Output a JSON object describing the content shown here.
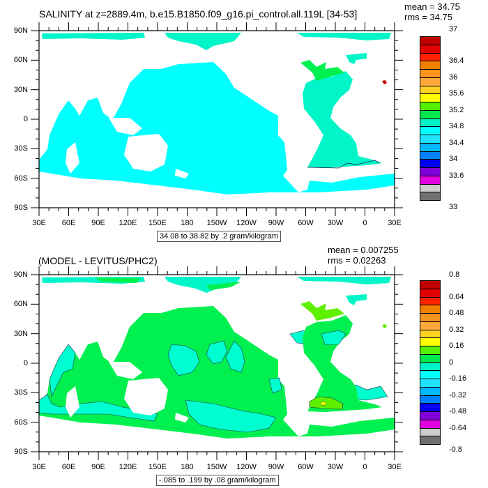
{
  "chart_data": [
    {
      "type": "heatmap",
      "title": "SALINITY at z=2889.4m, b.e15.B1850.f09_g16.pi_control.all.119L [34-53]",
      "stats": {
        "mean": "mean = 34.75",
        "rms": "rms = 34.75"
      },
      "footer": "34.08 to 38.82 by .2 gram/kilogram",
      "x_ticks": [
        "30E",
        "60E",
        "90E",
        "120E",
        "150E",
        "180",
        "150W",
        "120W",
        "90W",
        "60W",
        "30W",
        "0",
        "30E"
      ],
      "y_ticks": [
        "90N",
        "60N",
        "30N",
        "0",
        "30S",
        "60S",
        "90S"
      ],
      "colorbar_labels": [
        "37",
        "36.4",
        "36",
        "35.6",
        "35.2",
        "34.8",
        "34.4",
        "34",
        "33.6",
        "33"
      ],
      "colorbar_label_rows": [
        0,
        2,
        4,
        6,
        8,
        10,
        12,
        14,
        16,
        18,
        20
      ],
      "colorbar_label_map": [
        "37",
        "",
        "36.4",
        "",
        "36",
        "",
        "35.6",
        "",
        "35.2",
        "",
        "34.8",
        "",
        "34.4",
        "",
        "34",
        "",
        "33.6",
        "",
        "33"
      ],
      "colors": [
        "#c00000",
        "#e00000",
        "#ff2200",
        "#f08000",
        "#f89420",
        "#faa83a",
        "#ffd325",
        "#ffff00",
        "#55f000",
        "#00e850",
        "#00f2c6",
        "#00ffff",
        "#20e2ff",
        "#00b8ff",
        "#0082ff",
        "#0000f2",
        "#8000d8",
        "#e000e0",
        "#cccccc",
        "#707070"
      ]
    },
    {
      "type": "heatmap",
      "title": "(MODEL - LEVITUS/PHC2)",
      "stats": {
        "mean": "mean = 0.007255",
        "rms": "rms = 0.02263"
      },
      "footer": "-.085 to .199 by .08 gram/kilogram",
      "x_ticks": [
        "30E",
        "60E",
        "90E",
        "120E",
        "150E",
        "180",
        "150W",
        "120W",
        "90W",
        "60W",
        "30W",
        "0",
        "30E"
      ],
      "y_ticks": [
        "90N",
        "60N",
        "30N",
        "0",
        "30S",
        "60S",
        "90S"
      ],
      "colorbar_labels": [
        "0.8",
        "0.64",
        "0.48",
        "0.32",
        "0.16",
        "0",
        "-0.16",
        "-0.32",
        "-0.48",
        "-0.64",
        "-0.8"
      ],
      "colors": [
        "#c00000",
        "#e00000",
        "#ff2200",
        "#f08000",
        "#f89420",
        "#faa83a",
        "#ffd325",
        "#ffff00",
        "#55f000",
        "#00e850",
        "#00f2c6",
        "#00ffff",
        "#20e2ff",
        "#00b8ff",
        "#0082ff",
        "#0000f2",
        "#8000d8",
        "#e000e0",
        "#cccccc",
        "#707070"
      ]
    }
  ],
  "map_colors": {
    "cyan": "#00ffff",
    "aqua": "#00f5c8",
    "green": "#00f050",
    "lime": "#5ff000",
    "red": "#c00000",
    "yellow": "#ffff00"
  }
}
